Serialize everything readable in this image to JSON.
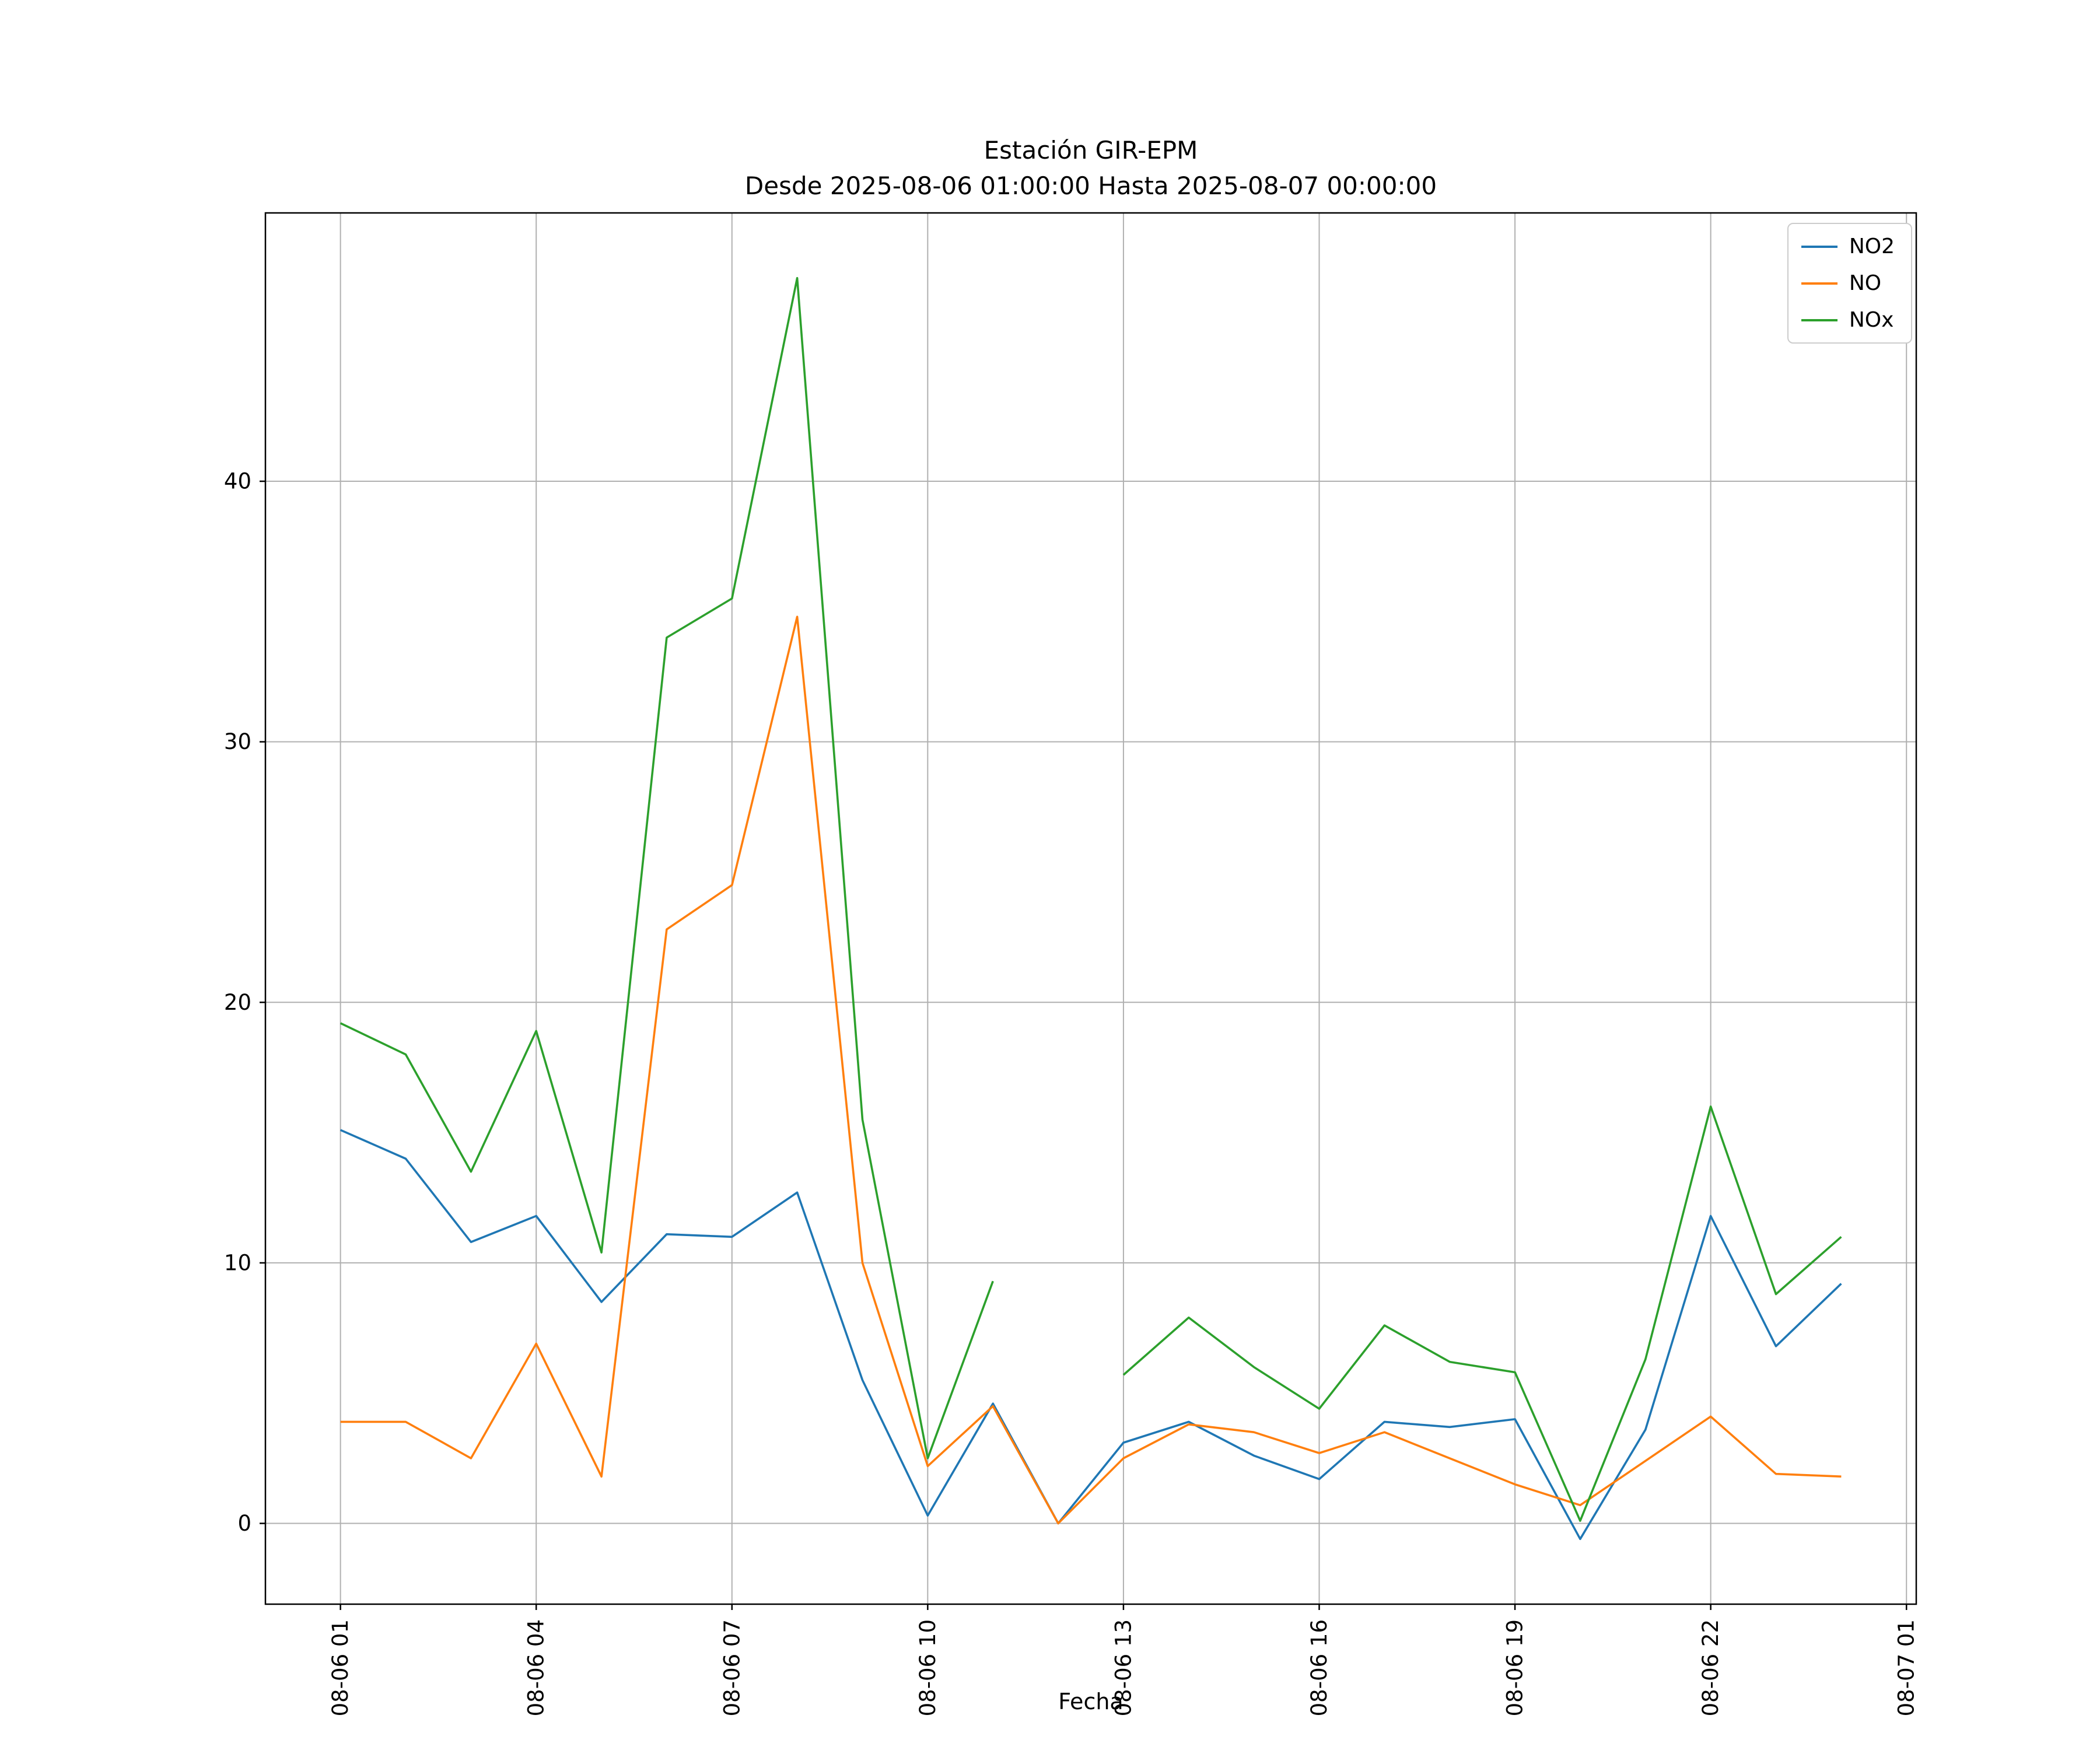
{
  "figure": {
    "title_line1": "Estación GIR-EPM",
    "title_line2": "Desde 2025-08-06 01:00:00 Hasta 2025-08-07 00:00:00",
    "xlabel": "Fecha"
  },
  "chart_data": {
    "type": "line",
    "title": "Estación GIR-EPM",
    "subtitle": "Desde 2025-08-06 01:00:00 Hasta 2025-08-07 00:00:00",
    "xlabel": "Fecha",
    "ylabel": "",
    "grid": true,
    "legend_position": "upper right",
    "x_hours": [
      1,
      2,
      3,
      4,
      5,
      6,
      7,
      8,
      9,
      10,
      11,
      12,
      13,
      14,
      15,
      16,
      17,
      18,
      19,
      20,
      21,
      22,
      23,
      24
    ],
    "xlim": [
      -0.15,
      25.15
    ],
    "ylim": [
      -3.1,
      50.3
    ],
    "yticks": [
      0,
      10,
      20,
      30,
      40
    ],
    "xticks": {
      "hours": [
        1,
        4,
        7,
        10,
        13,
        16,
        19,
        22,
        25
      ],
      "labels": [
        "08-06 01",
        "08-06 04",
        "08-06 07",
        "08-06 10",
        "08-06 13",
        "08-06 16",
        "08-06 19",
        "08-06 22",
        "08-07 01"
      ]
    },
    "grid_color": "#b0b0b0",
    "axis_color": "#000000",
    "series": [
      {
        "name": "NO2",
        "color": "#1f77b4",
        "values": [
          15.1,
          14.0,
          10.8,
          11.8,
          8.5,
          11.1,
          11.0,
          12.7,
          5.5,
          0.3,
          4.6,
          0.0,
          3.1,
          3.9,
          2.6,
          1.7,
          3.9,
          3.7,
          4.0,
          -0.6,
          3.6,
          11.8,
          6.8,
          9.2
        ]
      },
      {
        "name": "NO",
        "color": "#ff7f0e",
        "values": [
          3.9,
          3.9,
          2.5,
          6.9,
          1.8,
          22.8,
          24.5,
          34.8,
          10.0,
          2.2,
          4.5,
          0.0,
          2.5,
          3.8,
          3.5,
          2.7,
          3.5,
          2.5,
          1.5,
          0.7,
          2.4,
          4.1,
          1.9,
          1.8
        ]
      },
      {
        "name": "NOx",
        "color": "#2ca02c",
        "values": [
          19.2,
          18.0,
          13.5,
          18.9,
          10.4,
          34.0,
          35.5,
          47.8,
          15.5,
          2.5,
          9.3,
          null,
          5.7,
          7.9,
          6.0,
          4.4,
          7.6,
          6.2,
          5.8,
          0.1,
          6.3,
          16.0,
          8.8,
          11.0
        ]
      }
    ]
  }
}
